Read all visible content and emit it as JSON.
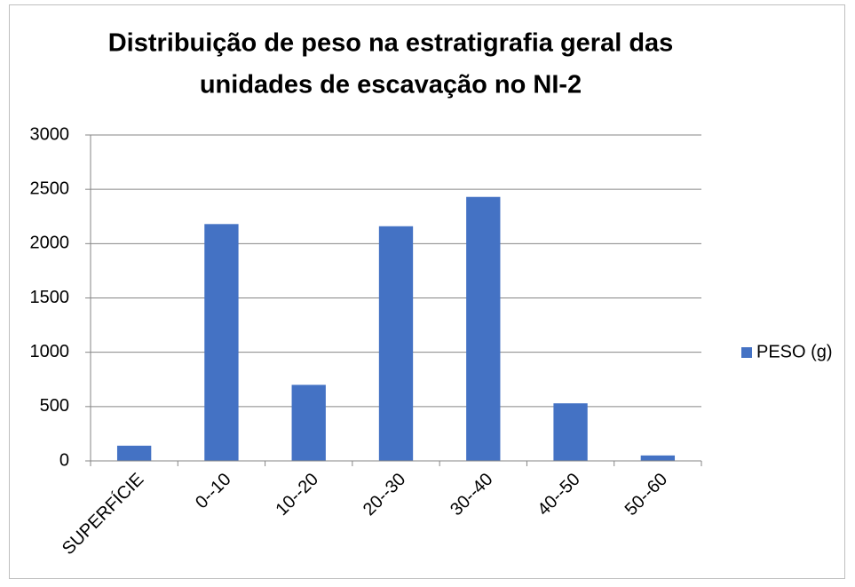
{
  "chart_data": {
    "type": "bar",
    "title": [
      "Distribuição de peso na estratigrafia geral das",
      "unidades de escavação no NI-2"
    ],
    "categories": [
      "SUPERFÍCIE",
      "0--10",
      "10--20",
      "20--30",
      "30--40",
      "40--50",
      "50--60"
    ],
    "series": [
      {
        "name": "PESO (g)",
        "color": "#4472c4",
        "values": [
          140,
          2180,
          700,
          2160,
          2430,
          530,
          50
        ]
      }
    ],
    "ylim": [
      0,
      3000
    ],
    "yticks": [
      0,
      500,
      1000,
      1500,
      2000,
      2500,
      3000
    ],
    "grid": true,
    "legend": "right"
  }
}
